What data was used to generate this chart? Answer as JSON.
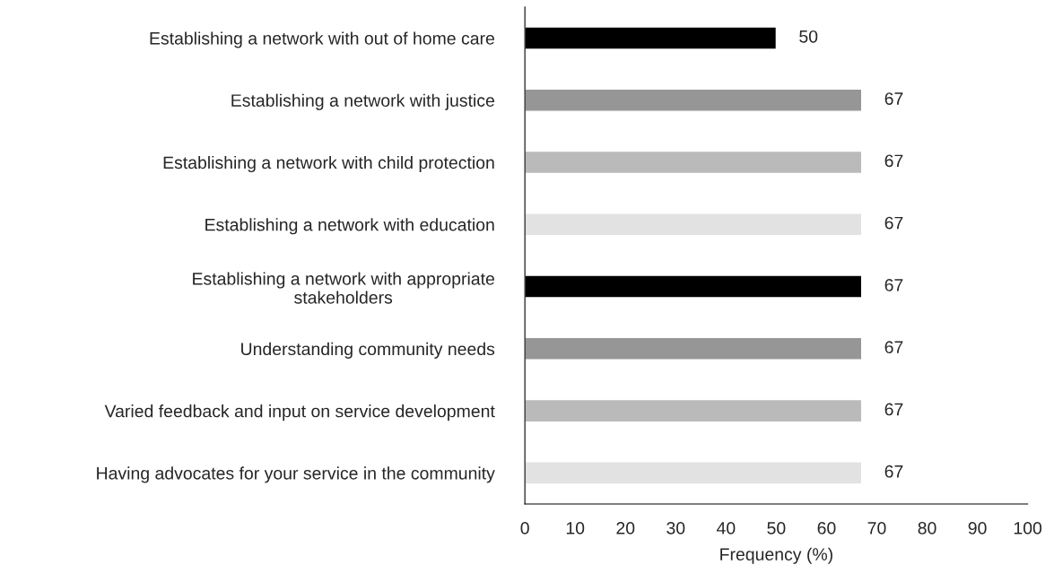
{
  "chart_data": {
    "type": "bar",
    "orientation": "horizontal",
    "xlabel": "Frequency (%)",
    "categories": [
      "Establishing a network with out of home care",
      "Establishing a network with justice",
      "Establishing a network with child protection",
      "Establishing a network with education",
      "Establishing a network with appropriate\nstakeholders",
      "Understanding community needs",
      "Varied feedback and input on service development",
      "Having advocates for your service in the community"
    ],
    "values": [
      50,
      67,
      67,
      67,
      67,
      67,
      67,
      67
    ],
    "colors": [
      "#000000",
      "#969696",
      "#bababa",
      "#e2e2e2",
      "#000000",
      "#969696",
      "#bababa",
      "#e2e2e2"
    ],
    "xlim": [
      0,
      100
    ],
    "xticks": [
      0,
      10,
      20,
      30,
      40,
      50,
      60,
      70,
      80,
      90,
      100
    ],
    "data_labels": true,
    "grid": false,
    "legend": false
  }
}
